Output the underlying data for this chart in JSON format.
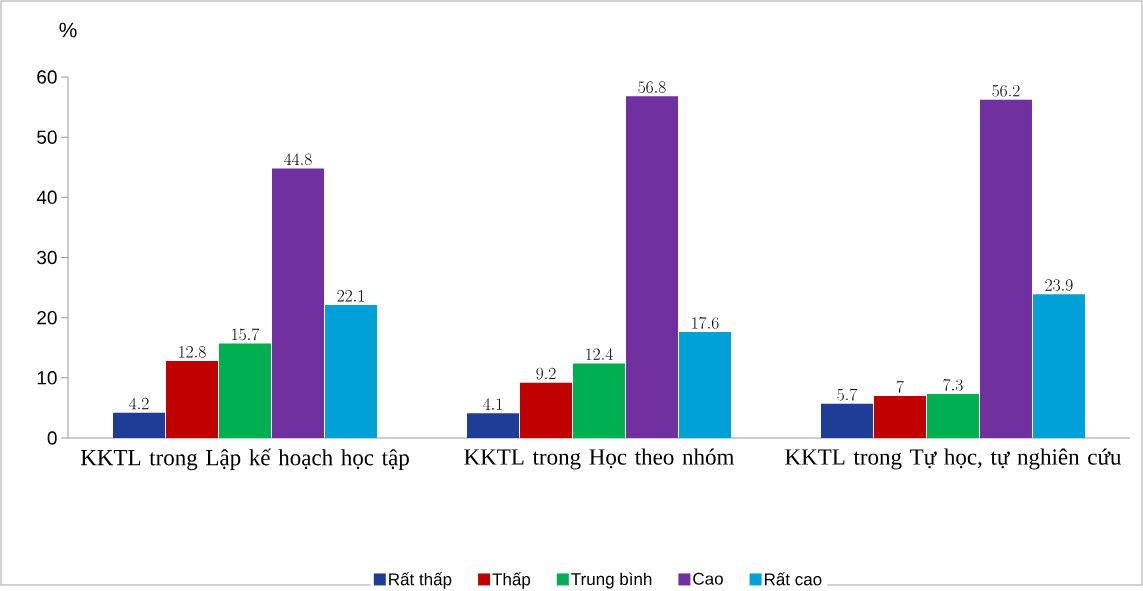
{
  "chart_data": {
    "type": "bar",
    "ylabel": "%",
    "categories": [
      "KKTL trong Lập kế hoạch học tập",
      "KKTL trong Học theo nhóm",
      "KKTL trong Tự học, tự nghiên cứu"
    ],
    "series": [
      {
        "name": "Rất thấp",
        "color": "#1f3d96",
        "values": [
          4.2,
          4.1,
          5.7
        ]
      },
      {
        "name": "Thấp",
        "color": "#c00000",
        "values": [
          12.8,
          9.2,
          7
        ]
      },
      {
        "name": "Trung bình",
        "color": "#00b050",
        "values": [
          15.7,
          12.4,
          7.3
        ]
      },
      {
        "name": "Cao",
        "color": "#7030a0",
        "values": [
          44.8,
          56.8,
          56.2
        ]
      },
      {
        "name": "Rất cao",
        "color": "#00a0d8",
        "values": [
          22.1,
          17.6,
          23.9
        ]
      }
    ],
    "ylim": [
      0,
      60
    ],
    "yticks": [
      0,
      10,
      20,
      30,
      40,
      50,
      60
    ],
    "data_labels": true,
    "legend": "bottom",
    "grid": false
  }
}
